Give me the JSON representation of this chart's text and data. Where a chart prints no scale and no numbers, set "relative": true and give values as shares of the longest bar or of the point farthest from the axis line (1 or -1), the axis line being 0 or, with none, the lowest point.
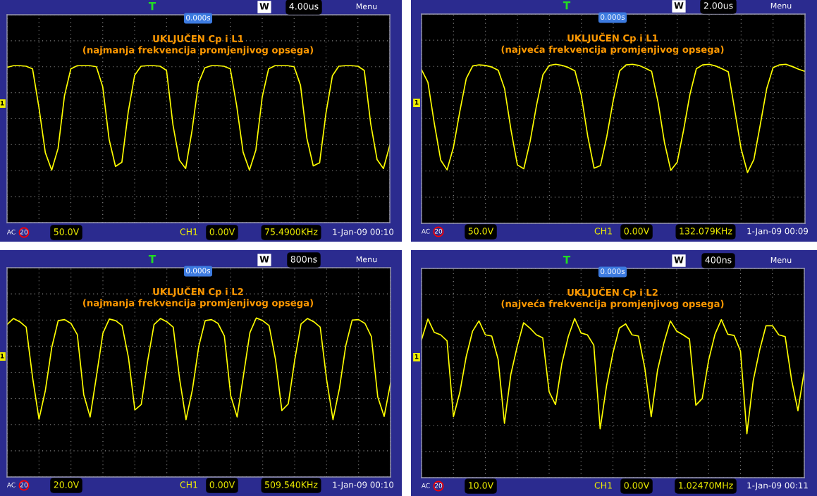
{
  "chart_data": [
    {
      "type": "line",
      "title": "UKLJUČEN Cp i L1",
      "subtitle": "(najmanja frekvencija promjenjivog opsega)",
      "relative": true,
      "grid": true,
      "categories": [
        null,
        null,
        null,
        null,
        null,
        null,
        null,
        null,
        null,
        null,
        null,
        null,
        null,
        null,
        null,
        null,
        null,
        null,
        null,
        null,
        null,
        null,
        null,
        null,
        null,
        null,
        null,
        null,
        null,
        null,
        null,
        null,
        null,
        null,
        null,
        null,
        null,
        null,
        null,
        null,
        null,
        null,
        null,
        null,
        null,
        null,
        null,
        null,
        null,
        null,
        null,
        null,
        null,
        null,
        null,
        null,
        null,
        null,
        null,
        null,
        null
      ],
      "series": [
        {
          "color": "#ffff00",
          "values": [
            0.97,
            1.0,
            1.0,
            0.99,
            0.94,
            0.21,
            -0.64,
            -0.97,
            -0.56,
            0.43,
            0.94,
            1.0,
            1.0,
            1.0,
            0.98,
            0.6,
            -0.39,
            -0.9,
            -0.82,
            0.13,
            0.82,
            0.99,
            1.0,
            1.0,
            0.99,
            0.91,
            -0.11,
            -0.78,
            -0.94,
            -0.22,
            0.67,
            0.96,
            1.0,
            1.0,
            0.99,
            0.94,
            0.24,
            -0.63,
            -0.97,
            -0.59,
            0.41,
            0.94,
            1.0,
            1.0,
            1.0,
            0.98,
            0.63,
            -0.37,
            -0.89,
            -0.83,
            0.11,
            0.81,
            0.99,
            1.0,
            1.0,
            0.99,
            0.91,
            -0.09,
            -0.77,
            -0.94,
            -0.5
          ]
        }
      ],
      "annotations": [
        "T",
        "W",
        "4.00us",
        "Menu",
        "0.000s",
        "AC",
        "20",
        "50.0V",
        "CH1",
        "0.00V",
        "75.4900KHz",
        "1-Jan-09 00:10",
        "1"
      ]
    },
    {
      "type": "line",
      "title": "UKLJUČEN Cp i L1",
      "subtitle": "(najveća frekvencija promjenjivog opsega)",
      "relative": true,
      "grid": true,
      "categories": [
        null,
        null,
        null,
        null,
        null,
        null,
        null,
        null,
        null,
        null,
        null,
        null,
        null,
        null,
        null,
        null,
        null,
        null,
        null,
        null,
        null,
        null,
        null,
        null,
        null,
        null,
        null,
        null,
        null,
        null,
        null,
        null,
        null,
        null,
        null,
        null,
        null,
        null,
        null,
        null,
        null,
        null,
        null,
        null,
        null,
        null,
        null,
        null,
        null,
        null,
        null,
        null,
        null,
        null,
        null,
        null,
        null,
        null,
        null,
        null,
        null
      ],
      "series": [
        {
          "color": "#ffff00",
          "values": [
            0.9,
            0.67,
            -0.09,
            -0.76,
            -0.94,
            -0.52,
            0.14,
            0.74,
            0.97,
            0.99,
            0.98,
            0.95,
            0.89,
            0.55,
            -0.21,
            -0.85,
            -0.92,
            -0.41,
            0.25,
            0.81,
            0.98,
            1.0,
            0.98,
            0.94,
            0.88,
            0.43,
            -0.32,
            -0.91,
            -0.86,
            -0.32,
            0.34,
            0.88,
            0.99,
            1.0,
            0.98,
            0.93,
            0.87,
            0.31,
            -0.43,
            -0.95,
            -0.8,
            -0.21,
            0.45,
            0.92,
            0.99,
            1.0,
            0.97,
            0.92,
            0.86,
            0.16,
            -0.55,
            -0.99,
            -0.75,
            -0.11,
            0.55,
            0.94,
            0.99,
            1.0,
            0.96,
            0.91,
            0.87
          ]
        }
      ],
      "annotations": [
        "T",
        "W",
        "2.00us",
        "Menu",
        "0.000s",
        "AC",
        "20",
        "50.0V",
        "CH1",
        "0.00V",
        "132.079KHz",
        "1-Jan-09 00:09",
        "1"
      ]
    },
    {
      "type": "line",
      "title": "UKLJUČEN Cp i L2",
      "subtitle": "(najmanja frekvencija promjenjivog opsega)",
      "relative": true,
      "grid": true,
      "categories": [
        null,
        null,
        null,
        null,
        null,
        null,
        null,
        null,
        null,
        null,
        null,
        null,
        null,
        null,
        null,
        null,
        null,
        null,
        null,
        null,
        null,
        null,
        null,
        null,
        null,
        null,
        null,
        null,
        null,
        null,
        null,
        null,
        null,
        null,
        null,
        null,
        null,
        null,
        null,
        null,
        null,
        null,
        null,
        null,
        null,
        null,
        null,
        null,
        null,
        null,
        null,
        null,
        null,
        null,
        null,
        null,
        null,
        null,
        null,
        null,
        null
      ],
      "series": [
        {
          "color": "#ffff00",
          "values": [
            0.88,
            0.99,
            0.93,
            0.83,
            -0.1,
            -0.86,
            -0.33,
            0.46,
            0.95,
            0.97,
            0.9,
            0.69,
            -0.41,
            -0.82,
            -0.06,
            0.72,
            0.98,
            0.95,
            0.86,
            0.27,
            -0.69,
            -0.59,
            0.21,
            0.88,
            0.99,
            0.93,
            0.83,
            -0.12,
            -0.87,
            -0.32,
            0.48,
            0.95,
            0.97,
            0.9,
            0.67,
            -0.43,
            -0.82,
            -0.05,
            0.73,
            1.0,
            0.95,
            0.86,
            0.24,
            -0.7,
            -0.58,
            0.22,
            0.89,
            0.99,
            0.93,
            0.83,
            -0.13,
            -0.87,
            -0.3,
            0.49,
            0.96,
            0.97,
            0.9,
            0.66,
            -0.45,
            -0.81,
            -0.2
          ]
        }
      ],
      "annotations": [
        "T",
        "W",
        "800ns",
        "Menu",
        "0.000s",
        "AC",
        "20",
        "20.0V",
        "CH1",
        "0.00V",
        "509.540KHz",
        "1-Jan-09 00:10",
        "1"
      ]
    },
    {
      "type": "line",
      "title": "UKLJUČEN Cp i L2",
      "subtitle": "(najveća frekvencija promjenjivog opsega)",
      "relative": true,
      "grid": true,
      "categories": [
        null,
        null,
        null,
        null,
        null,
        null,
        null,
        null,
        null,
        null,
        null,
        null,
        null,
        null,
        null,
        null,
        null,
        null,
        null,
        null,
        null,
        null,
        null,
        null,
        null,
        null,
        null,
        null,
        null,
        null,
        null,
        null,
        null,
        null,
        null,
        null,
        null,
        null,
        null,
        null,
        null,
        null,
        null,
        null,
        null,
        null,
        null,
        null,
        null,
        null,
        null,
        null,
        null,
        null,
        null,
        null,
        null,
        null,
        null,
        null,
        null
      ],
      "series": [
        {
          "color": "#ffff00",
          "values": [
            0.55,
            0.89,
            0.67,
            0.63,
            0.53,
            -0.72,
            -0.32,
            0.27,
            0.69,
            0.86,
            0.63,
            0.61,
            0.23,
            -0.83,
            -0.02,
            0.44,
            0.83,
            0.74,
            0.63,
            0.58,
            -0.31,
            -0.52,
            0.16,
            0.6,
            0.9,
            0.66,
            0.63,
            0.46,
            -0.92,
            -0.21,
            0.33,
            0.74,
            0.81,
            0.63,
            0.61,
            0.08,
            -0.72,
            0.05,
            0.5,
            0.86,
            0.69,
            0.63,
            0.56,
            -0.53,
            -0.42,
            0.21,
            0.64,
            0.88,
            0.64,
            0.62,
            0.36,
            -1.0,
            -0.12,
            0.38,
            0.78,
            0.78,
            0.63,
            0.6,
            -0.11,
            -0.62,
            0.04
          ]
        }
      ],
      "annotations": [
        "T",
        "W",
        "400ns",
        "Menu",
        "0.000s",
        "AC",
        "20",
        "10.0V",
        "CH1",
        "0.00V",
        "1.02470MHz",
        "1-Jan-09 00:11",
        "1"
      ]
    }
  ]
}
